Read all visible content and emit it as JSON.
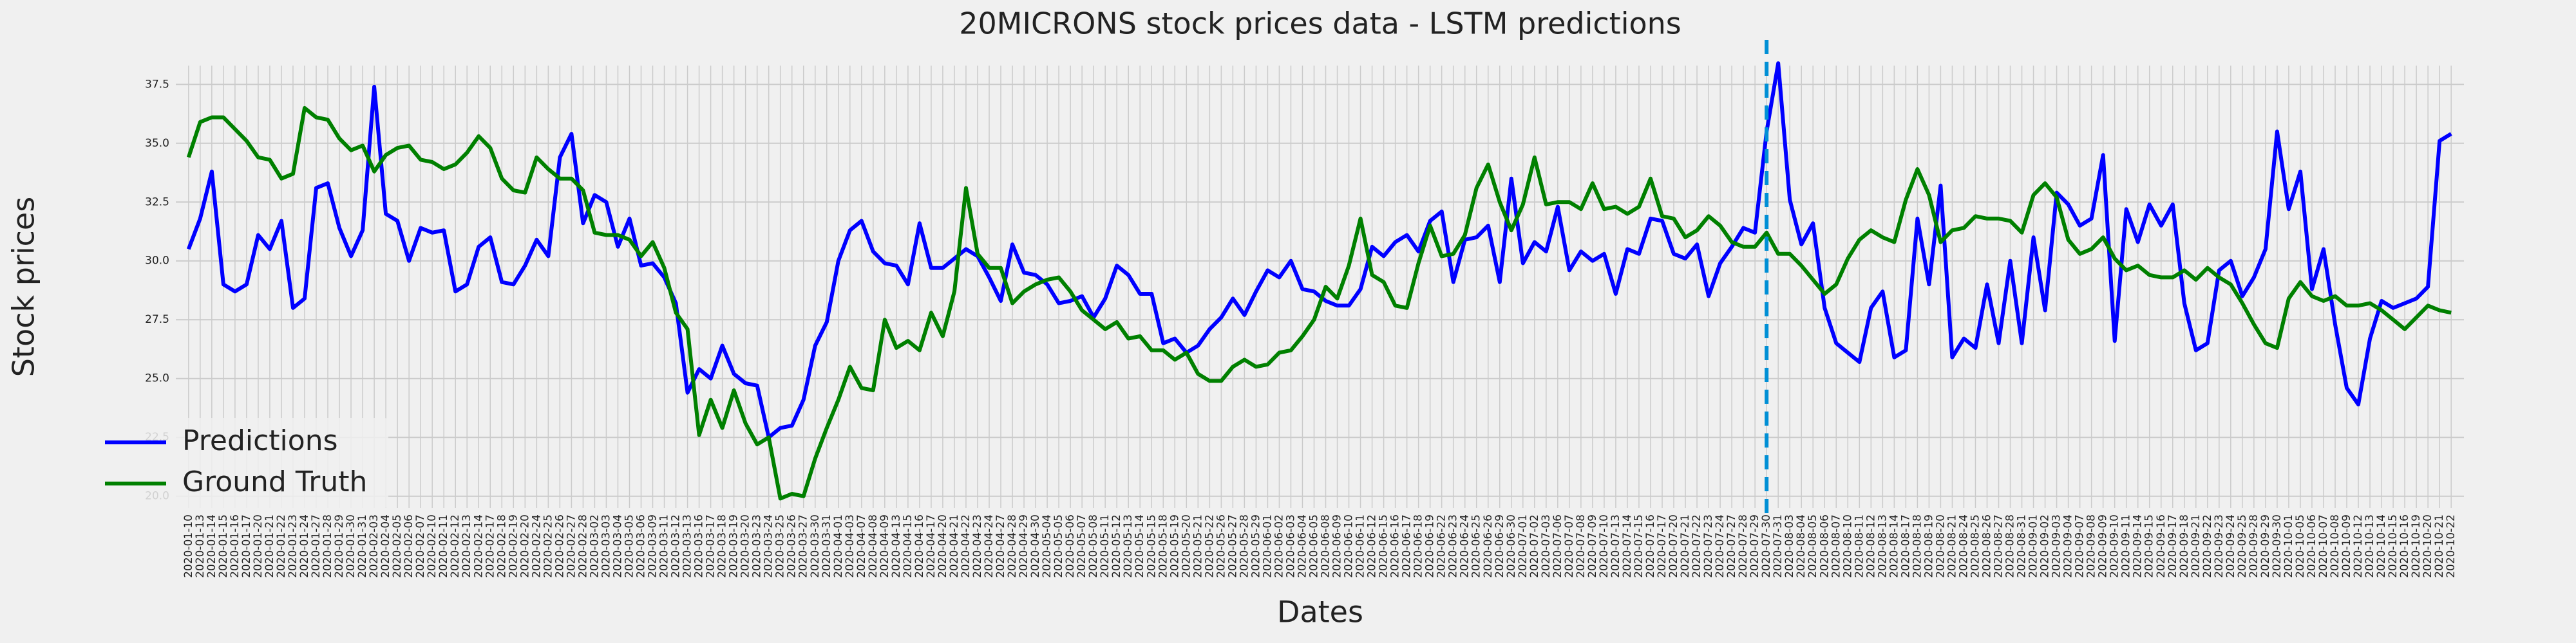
{
  "chart_data": {
    "type": "line",
    "title": "20MICRONS stock prices data - LSTM predictions",
    "xlabel": "Dates",
    "ylabel": "Stock prices",
    "x": [
      "2020-01-10",
      "2020-01-13",
      "2020-01-14",
      "2020-01-15",
      "2020-01-16",
      "2020-01-17",
      "2020-01-20",
      "2020-01-21",
      "2020-01-22",
      "2020-01-23",
      "2020-01-24",
      "2020-01-27",
      "2020-01-28",
      "2020-01-29",
      "2020-01-30",
      "2020-01-31",
      "2020-02-03",
      "2020-02-04",
      "2020-02-05",
      "2020-02-06",
      "2020-02-07",
      "2020-02-10",
      "2020-02-11",
      "2020-02-12",
      "2020-02-13",
      "2020-02-14",
      "2020-02-17",
      "2020-02-18",
      "2020-02-19",
      "2020-02-20",
      "2020-02-24",
      "2020-02-25",
      "2020-02-26",
      "2020-02-27",
      "2020-02-28",
      "2020-03-02",
      "2020-03-03",
      "2020-03-04",
      "2020-03-05",
      "2020-03-06",
      "2020-03-09",
      "2020-03-11",
      "2020-03-12",
      "2020-03-13",
      "2020-03-16",
      "2020-03-17",
      "2020-03-18",
      "2020-03-19",
      "2020-03-20",
      "2020-03-23",
      "2020-03-24",
      "2020-03-25",
      "2020-03-26",
      "2020-03-27",
      "2020-03-30",
      "2020-03-31",
      "2020-04-01",
      "2020-04-03",
      "2020-04-07",
      "2020-04-08",
      "2020-04-09",
      "2020-04-13",
      "2020-04-15",
      "2020-04-16",
      "2020-04-17",
      "2020-04-20",
      "2020-04-21",
      "2020-04-22",
      "2020-04-23",
      "2020-04-24",
      "2020-04-27",
      "2020-04-28",
      "2020-04-29",
      "2020-04-30",
      "2020-05-04",
      "2020-05-05",
      "2020-05-06",
      "2020-05-07",
      "2020-05-08",
      "2020-05-11",
      "2020-05-12",
      "2020-05-13",
      "2020-05-14",
      "2020-05-15",
      "2020-05-18",
      "2020-05-19",
      "2020-05-20",
      "2020-05-21",
      "2020-05-22",
      "2020-05-26",
      "2020-05-27",
      "2020-05-28",
      "2020-05-29",
      "2020-06-01",
      "2020-06-02",
      "2020-06-03",
      "2020-06-04",
      "2020-06-05",
      "2020-06-08",
      "2020-06-09",
      "2020-06-10",
      "2020-06-11",
      "2020-06-12",
      "2020-06-15",
      "2020-06-16",
      "2020-06-17",
      "2020-06-18",
      "2020-06-19",
      "2020-06-22",
      "2020-06-23",
      "2020-06-24",
      "2020-06-25",
      "2020-06-26",
      "2020-06-29",
      "2020-06-30",
      "2020-07-01",
      "2020-07-02",
      "2020-07-03",
      "2020-07-06",
      "2020-07-07",
      "2020-07-08",
      "2020-07-09",
      "2020-07-10",
      "2020-07-13",
      "2020-07-14",
      "2020-07-15",
      "2020-07-16",
      "2020-07-17",
      "2020-07-20",
      "2020-07-21",
      "2020-07-22",
      "2020-07-23",
      "2020-07-24",
      "2020-07-27",
      "2020-07-28",
      "2020-07-29",
      "2020-07-30",
      "2020-07-31",
      "2020-08-03",
      "2020-08-04",
      "2020-08-05",
      "2020-08-06",
      "2020-08-07",
      "2020-08-10",
      "2020-08-11",
      "2020-08-12",
      "2020-08-13",
      "2020-08-14",
      "2020-08-17",
      "2020-08-18",
      "2020-08-19",
      "2020-08-20",
      "2020-08-21",
      "2020-08-24",
      "2020-08-25",
      "2020-08-26",
      "2020-08-27",
      "2020-08-28",
      "2020-08-31",
      "2020-09-01",
      "2020-09-02",
      "2020-09-03",
      "2020-09-04",
      "2020-09-07",
      "2020-09-08",
      "2020-09-09",
      "2020-09-10",
      "2020-09-11",
      "2020-09-14",
      "2020-09-15",
      "2020-09-16",
      "2020-09-17",
      "2020-09-18",
      "2020-09-21",
      "2020-09-22",
      "2020-09-23",
      "2020-09-24",
      "2020-09-25",
      "2020-09-28",
      "2020-09-29",
      "2020-09-30",
      "2020-10-01",
      "2020-10-05",
      "2020-10-06",
      "2020-10-07",
      "2020-10-08",
      "2020-10-09",
      "2020-10-12",
      "2020-10-13",
      "2020-10-14",
      "2020-10-15",
      "2020-10-16",
      "2020-10-19",
      "2020-10-20",
      "2020-10-21",
      "2020-10-22"
    ],
    "series": [
      {
        "name": "Predictions",
        "color": "#0000ff",
        "values": [
          30.5,
          31.8,
          33.8,
          29.0,
          28.7,
          29.0,
          31.1,
          30.5,
          31.7,
          28.0,
          28.4,
          33.1,
          33.3,
          31.4,
          30.2,
          31.3,
          37.4,
          32.0,
          31.7,
          30.0,
          31.4,
          31.2,
          31.3,
          28.7,
          29.0,
          30.6,
          31.0,
          29.1,
          29.0,
          29.8,
          30.9,
          30.2,
          34.4,
          35.4,
          31.6,
          32.8,
          32.5,
          30.6,
          31.8,
          29.8,
          29.9,
          29.3,
          28.2,
          24.4,
          25.4,
          25.0,
          26.4,
          25.2,
          24.8,
          24.7,
          22.5,
          22.9,
          23.0,
          24.1,
          26.4,
          27.4,
          30.0,
          31.3,
          31.7,
          30.4,
          29.9,
          29.8,
          29.0,
          31.6,
          29.7,
          29.7,
          30.1,
          30.5,
          30.2,
          29.3,
          28.3,
          30.7,
          29.5,
          29.4,
          29.0,
          28.2,
          28.3,
          28.5,
          27.6,
          28.4,
          29.8,
          29.4,
          28.6,
          28.6,
          26.5,
          26.7,
          26.1,
          26.4,
          27.1,
          27.6,
          28.4,
          27.7,
          28.7,
          29.6,
          29.3,
          30.0,
          28.8,
          28.7,
          28.3,
          28.1,
          28.1,
          28.8,
          30.6,
          30.2,
          30.8,
          31.1,
          30.4,
          31.7,
          32.1,
          29.1,
          30.9,
          31.0,
          31.5,
          29.1,
          33.5,
          29.9,
          30.8,
          30.4,
          32.3,
          29.6,
          30.4,
          30.0,
          30.3,
          28.6,
          30.5,
          30.3,
          31.8,
          31.7,
          30.3,
          30.1,
          30.7,
          28.5,
          29.9,
          30.6,
          31.4,
          31.2,
          35.5,
          38.4,
          32.6,
          30.7,
          31.6,
          28.0,
          26.5,
          26.1,
          25.7,
          28.0,
          28.7,
          25.9,
          26.2,
          31.8,
          29.0,
          33.2,
          25.9,
          26.7,
          26.3,
          29.0,
          26.5,
          30.0,
          26.5,
          31.0,
          27.9,
          32.9,
          32.4,
          31.5,
          31.8,
          34.5,
          26.6,
          32.2,
          30.8,
          32.4,
          31.5,
          32.4,
          28.2,
          26.2,
          26.5,
          29.6,
          30.0,
          28.5,
          29.3,
          30.5,
          35.5,
          32.2,
          33.8,
          28.8,
          30.5,
          27.3,
          24.6,
          23.9,
          26.7,
          28.3,
          28.0,
          28.2,
          28.4,
          28.9,
          35.1,
          35.4
        ]
      },
      {
        "name": "Ground Truth",
        "color": "#008000",
        "values": [
          34.4,
          35.9,
          36.1,
          36.1,
          35.6,
          35.1,
          34.4,
          34.3,
          33.5,
          33.7,
          36.5,
          36.1,
          36.0,
          35.2,
          34.7,
          34.9,
          33.8,
          34.5,
          34.8,
          34.9,
          34.3,
          34.2,
          33.9,
          34.1,
          34.6,
          35.3,
          34.8,
          33.5,
          33.0,
          32.9,
          34.4,
          33.9,
          33.5,
          33.5,
          33.0,
          31.2,
          31.1,
          31.1,
          30.9,
          30.2,
          30.8,
          29.7,
          27.8,
          27.1,
          22.6,
          24.1,
          22.9,
          24.5,
          23.1,
          22.2,
          22.5,
          19.9,
          20.1,
          20.0,
          21.6,
          22.9,
          24.1,
          25.5,
          24.6,
          24.5,
          27.5,
          26.3,
          26.6,
          26.2,
          27.8,
          26.8,
          28.7,
          33.1,
          30.3,
          29.7,
          29.7,
          28.2,
          28.7,
          29.0,
          29.2,
          29.3,
          28.7,
          27.9,
          27.5,
          27.1,
          27.4,
          26.7,
          26.8,
          26.2,
          26.2,
          25.8,
          26.1,
          25.2,
          24.9,
          24.9,
          25.5,
          25.8,
          25.5,
          25.6,
          26.1,
          26.2,
          26.8,
          27.5,
          28.9,
          28.4,
          29.8,
          31.8,
          29.4,
          29.1,
          28.1,
          28.0,
          29.9,
          31.5,
          30.2,
          30.3,
          31.1,
          33.1,
          34.1,
          32.5,
          31.3,
          32.4,
          34.4,
          32.4,
          32.5,
          32.5,
          32.2,
          33.3,
          32.2,
          32.3,
          32.0,
          32.3,
          33.5,
          31.9,
          31.8,
          31.0,
          31.3,
          31.9,
          31.5,
          30.8,
          30.6,
          30.6,
          31.2,
          30.3,
          30.3,
          29.8,
          29.2,
          28.6,
          29.0,
          30.1,
          30.9,
          31.3,
          31.0,
          30.8,
          32.6,
          33.9,
          32.8,
          30.8,
          31.3,
          31.4,
          31.9,
          31.8,
          31.8,
          31.7,
          31.2,
          32.8,
          33.3,
          32.7,
          30.9,
          30.3,
          30.5,
          31.0,
          30.1,
          29.6,
          29.8,
          29.4,
          29.3,
          29.3,
          29.6,
          29.2,
          29.7,
          29.3,
          29.0,
          28.2,
          27.3,
          26.5,
          26.3,
          28.4,
          29.1,
          28.5,
          28.3,
          28.5,
          28.1,
          28.1,
          28.2,
          27.9,
          27.5,
          27.1,
          27.6,
          28.1,
          27.9,
          27.8
        ]
      }
    ],
    "ylim": [
      19.5,
      38.3
    ],
    "yticks": [
      {
        "value": 20,
        "label": "20.0"
      },
      {
        "value": 22.5,
        "label": "22.5"
      },
      {
        "value": 25,
        "label": "25.0"
      },
      {
        "value": 27.5,
        "label": "27.5"
      },
      {
        "value": 30,
        "label": "30.0"
      },
      {
        "value": 32.5,
        "label": "32.5"
      },
      {
        "value": 35,
        "label": "35.0"
      },
      {
        "value": 37.5,
        "label": "37.5"
      }
    ],
    "vline": "2020-07-30",
    "vline_color": "#008fd5",
    "grid": true,
    "legend": "lower left"
  }
}
